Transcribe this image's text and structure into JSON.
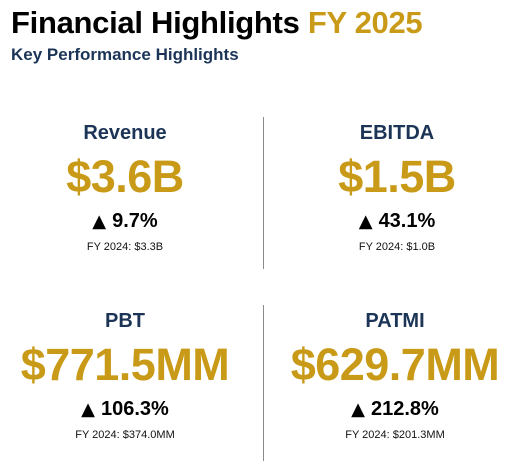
{
  "header": {
    "title_main": "Financial Highlights",
    "title_accent": "FY 2025",
    "subtitle": "Key Performance Highlights"
  },
  "colors": {
    "accent": "#c99a17",
    "navy": "#1c3557",
    "text": "#000000",
    "divider": "#8a8a8a"
  },
  "kpis": {
    "revenue": {
      "label": "Revenue",
      "value": "$3.6B",
      "arrow": "▲",
      "change": "9.7%",
      "prior": "FY 2024: $3.3B"
    },
    "ebitda": {
      "label": "EBITDA",
      "value": "$1.5B",
      "arrow": "▲",
      "change": "43.1%",
      "prior": "FY 2024: $1.0B"
    },
    "pbt": {
      "label": "PBT",
      "value": "$771.5MM",
      "arrow": "▲",
      "change": "106.3%",
      "prior": "FY 2024: $374.0MM"
    },
    "patmi": {
      "label": "PATMI",
      "value": "$629.7MM",
      "arrow": "▲",
      "change": "212.8%",
      "prior": "FY 2024: $201.3MM"
    }
  }
}
